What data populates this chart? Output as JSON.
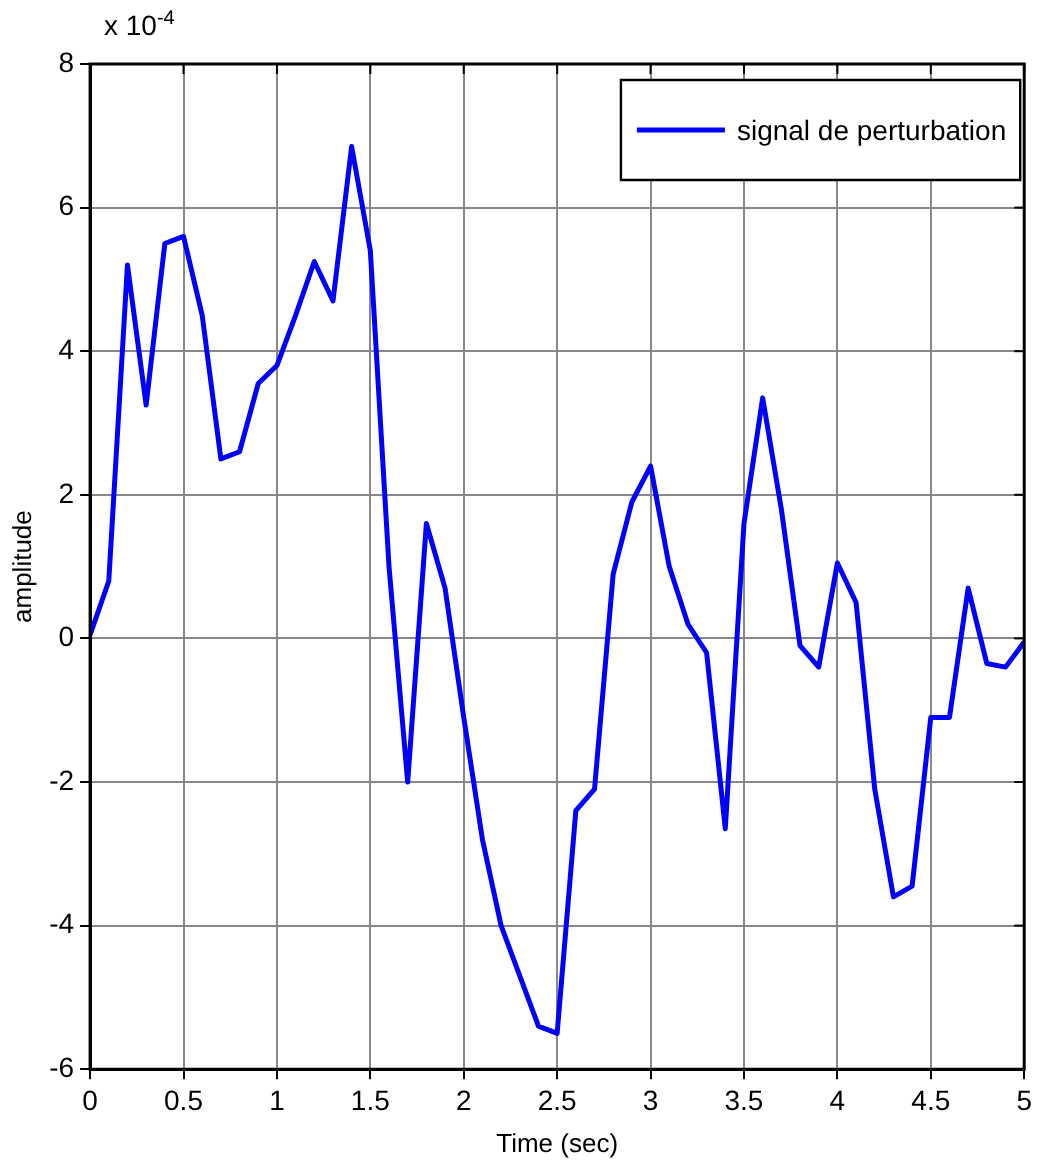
{
  "chart_data": {
    "type": "line",
    "xlabel": "Time (sec)",
    "ylabel": "amplitude",
    "annotations": [
      "x 10$^{-4}$"
    ],
    "x": [
      0,
      0.1,
      0.2,
      0.3,
      0.4,
      0.5,
      0.6,
      0.7,
      0.8,
      0.9,
      1,
      1.1,
      1.2,
      1.3,
      1.4,
      1.5,
      1.6,
      1.7,
      1.8,
      1.9,
      2,
      2.1,
      2.2,
      2.3,
      2.4,
      2.5,
      2.6,
      2.7,
      2.8,
      2.9,
      3,
      3.1,
      3.2,
      3.3,
      3.4,
      3.5,
      3.6,
      3.7,
      3.8,
      3.9,
      4,
      4.1,
      4.2,
      4.3,
      4.4,
      4.5,
      4.6,
      4.7,
      4.8,
      4.9,
      5
    ],
    "series": [
      {
        "name": "signal de perturbation",
        "color": "#0000ff",
        "values": [
          0.05,
          0.8,
          5.2,
          3.25,
          5.5,
          5.6,
          4.5,
          2.5,
          2.6,
          3.55,
          3.8,
          4.5,
          5.25,
          4.7,
          6.85,
          5.4,
          1.0,
          -2.0,
          1.6,
          0.7,
          -1.1,
          -2.8,
          -4.0,
          -4.7,
          -5.4,
          -5.5,
          -2.4,
          -2.1,
          0.9,
          1.9,
          2.4,
          1.0,
          0.2,
          -0.2,
          -2.65,
          1.6,
          3.35,
          1.8,
          -0.1,
          -0.4,
          1.05,
          0.5,
          -2.1,
          -3.6,
          -3.45,
          -1.1,
          -1.1,
          0.7,
          -0.35,
          -0.4,
          -0.05
        ]
      }
    ],
    "xlim": [
      0,
      5
    ],
    "xticks": [
      0,
      0.5,
      1,
      1.5,
      2,
      2.5,
      3,
      3.5,
      4,
      4.5,
      5
    ],
    "ylim": [
      -6,
      8
    ],
    "yticks": [
      -6,
      -4,
      -2,
      0,
      2,
      4,
      6,
      8
    ],
    "grid": true,
    "legend": "top right",
    "line_style": "solid",
    "marker": "none"
  }
}
